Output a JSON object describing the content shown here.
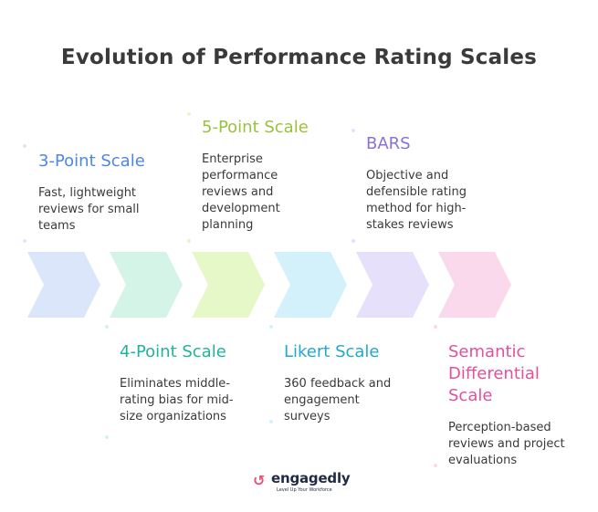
{
  "title": "Evolution of Performance Rating Scales",
  "stages": [
    {
      "name": "3-Point Scale",
      "description": "Fast, lightweight reviews for small teams",
      "color": "#4f86e6",
      "fill": "#dce6fb",
      "position": "top"
    },
    {
      "name": "4-Point Scale",
      "description": "Eliminates middle-rating bias for mid-size organizations",
      "color": "#22b39c",
      "fill": "#d3f4e6",
      "position": "bottom"
    },
    {
      "name": "5-Point Scale",
      "description": "Enterprise performance reviews and development planning",
      "color": "#9ac23c",
      "fill": "#e6f8c8",
      "position": "top"
    },
    {
      "name": "Likert Scale",
      "description": "360 feedback and engagement surveys",
      "color": "#22a8cf",
      "fill": "#d3f1fb",
      "position": "bottom"
    },
    {
      "name": "BARS",
      "description": "Objective and defensible rating method for high-stakes reviews",
      "color": "#8a72d6",
      "fill": "#e6e0fb",
      "position": "top"
    },
    {
      "name": "Semantic Differential Scale",
      "description": "Perception-based reviews and project evaluations",
      "color": "#e64f9a",
      "fill": "#fbd9ec",
      "position": "bottom"
    }
  ],
  "logo": {
    "name": "engagedly",
    "tagline": "Level Up Your Workforce"
  }
}
